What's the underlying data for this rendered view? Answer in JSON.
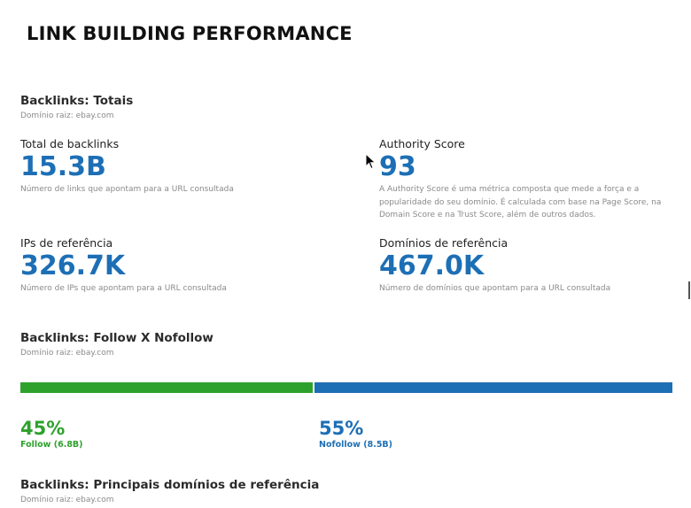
{
  "page": {
    "title": "LINK BUILDING PERFORMANCE"
  },
  "totals": {
    "title": "Backlinks: Totais",
    "subtitle": "Domínio raiz: ebay.com",
    "metrics": {
      "total_backlinks": {
        "label": "Total de backlinks",
        "value": "15.3B",
        "desc": "Número de links que apontam para a URL consultada"
      },
      "authority_score": {
        "label": "Authority Score",
        "value": "93",
        "desc": "A Authority Score é uma métrica composta que mede a força e a popularidade do seu domínio. É calculada com base na Page Score, na Domain Score e na Trust Score, além de outros dados."
      },
      "referring_ips": {
        "label": "IPs de referência",
        "value": "326.7K",
        "desc": "Número de IPs que apontam para a URL consultada"
      },
      "referring_domains": {
        "label": "Domínios de referência",
        "value": "467.0K",
        "desc": "Número de domínios que apontam para a URL consultada"
      }
    }
  },
  "follow_nofollow": {
    "title": "Backlinks: Follow X Nofollow",
    "subtitle": "Domínio raiz: ebay.com",
    "follow": {
      "percent_text": "45%",
      "label": "Follow (6.8B)",
      "fraction": 0.45,
      "color": "#2ea12d"
    },
    "nofollow": {
      "percent_text": "55%",
      "label": "Nofollow (8.5B)",
      "fraction": 0.55,
      "color": "#1d6fb5"
    }
  },
  "top_domains": {
    "title": "Backlinks: Principais domínios de referência",
    "subtitle": "Domínio raiz: ebay.com"
  },
  "colors": {
    "accent_blue": "#1d6fb5",
    "accent_green": "#2ea12d"
  }
}
